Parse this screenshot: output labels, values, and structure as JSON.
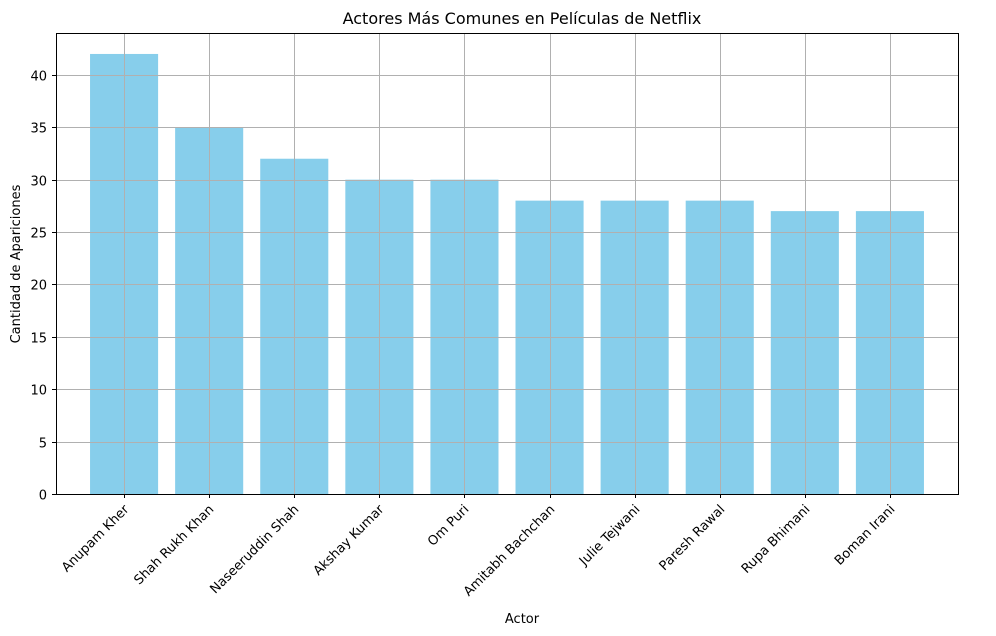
{
  "chart_data": {
    "type": "bar",
    "title": "Actores Más Comunes en Películas de Netflix",
    "xlabel": "Actor",
    "ylabel": "Cantidad de Apariciones",
    "categories": [
      "Anupam Kher",
      "Shah Rukh Khan",
      "Naseeruddin Shah",
      "Akshay Kumar",
      "Om Puri",
      "Amitabh Bachchan",
      "Julie Tejwani",
      "Paresh Rawal",
      "Rupa Bhimani",
      "Boman Irani"
    ],
    "values": [
      42,
      35,
      32,
      30,
      30,
      28,
      28,
      28,
      27,
      27
    ],
    "ylim": [
      0,
      44
    ],
    "yticks": [
      0,
      5,
      10,
      15,
      20,
      25,
      30,
      35,
      40
    ],
    "grid": true,
    "bar_color": "#87ceeb",
    "grid_color": "#b0b0b0"
  }
}
